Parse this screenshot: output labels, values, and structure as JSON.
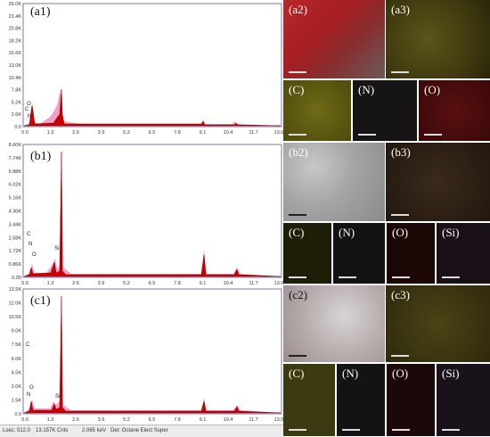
{
  "panels": {
    "a1": {
      "label": "(a1)",
      "yticks": [
        "26.0K",
        "23.4K",
        "20.8K",
        "18.2K",
        "15.6K",
        "13.0K",
        "10.4K",
        "7.8K",
        "5.2K",
        "2.6K",
        "0.0"
      ],
      "peak_labels": [
        "O",
        "C",
        "N"
      ]
    },
    "b1": {
      "label": "(b1)",
      "yticks": [
        "8.60K",
        "7.74K",
        "6.88K",
        "6.02K",
        "5.16K",
        "4.30K",
        "3.44K",
        "2.58K",
        "1.72K",
        "0.86K",
        "0.00"
      ],
      "peak_labels": [
        "C",
        "N",
        "O",
        "Si"
      ]
    },
    "c1": {
      "label": "(c1)",
      "yticks": [
        "13.5K",
        "12.0K",
        "10.5K",
        "9.0K",
        "7.5K",
        "6.0K",
        "4.5K",
        "3.0K",
        "1.5K",
        "0.0"
      ],
      "peak_labels": [
        "C",
        "O",
        "N",
        "Si"
      ]
    }
  },
  "xticks": [
    "0.0",
    "1.3",
    "2.6",
    "3.9",
    "5.2",
    "6.5",
    "7.8",
    "9.1",
    "10.4",
    "11.7",
    "13.0"
  ],
  "tiles": {
    "a2": "(a2)",
    "a3": "(a3)",
    "a_c": "(C)",
    "a_n": "(N)",
    "a_o": "(O)",
    "b2": "(b2)",
    "b3": "(b3)",
    "b_c": "(C)",
    "b_n": "(N)",
    "b_o": "(O)",
    "b_si": "(Si)",
    "c2": "(c2)",
    "c3": "(c3)",
    "c_c": "(C)",
    "c_n": "(N)",
    "c_o": "(O)",
    "c_si": "(Si)"
  },
  "status_bar": {
    "lsec": "Lsec: 512.0",
    "cnts": "13.157K Cnts",
    "kev": "2.065 keV",
    "det": "Det: Octane Elect Super"
  },
  "colors": {
    "spectrum_fill": "#cc0000",
    "spectrum_edge": "#800000",
    "pink_band": "#f2a0c8"
  }
}
